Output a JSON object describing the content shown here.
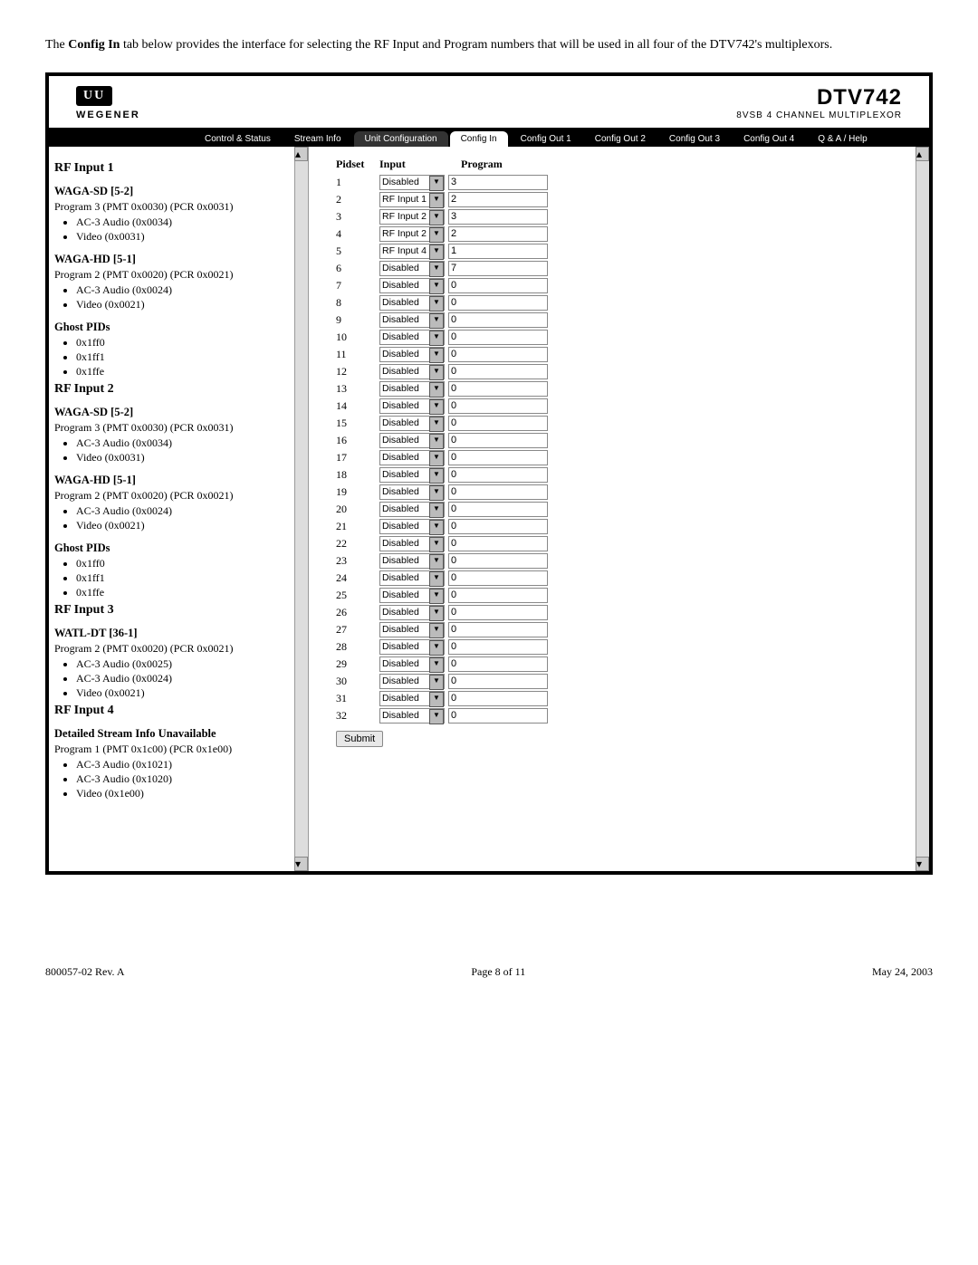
{
  "intro": {
    "prefix": "The ",
    "bold": "Config In",
    "rest": " tab below provides the interface for selecting the RF Input and Program numbers that will be used in all four of the DTV742's multiplexors."
  },
  "header": {
    "logo_symbol": "UU",
    "logo_brand": "WEGENER",
    "title": "DTV742",
    "subtitle": "8VSB 4 CHANNEL MULTIPLEXOR"
  },
  "tabs": [
    {
      "label": "Control & Status",
      "state": "normal"
    },
    {
      "label": "Stream Info",
      "state": "normal"
    },
    {
      "label": "Unit Configuration",
      "state": "active-dark"
    },
    {
      "label": "Config In",
      "state": "active"
    },
    {
      "label": "Config Out 1",
      "state": "normal"
    },
    {
      "label": "Config Out 2",
      "state": "normal"
    },
    {
      "label": "Config Out 3",
      "state": "normal"
    },
    {
      "label": "Config Out 4",
      "state": "normal"
    },
    {
      "label": "Q & A / Help",
      "state": "normal"
    }
  ],
  "left": {
    "inputs": [
      {
        "title": "RF Input 1",
        "stations": [
          {
            "name": "WAGA-SD [5-2]",
            "program": "Program 3 (PMT 0x0030) (PCR 0x0031)",
            "streams": [
              "AC-3 Audio (0x0034)",
              "Video (0x0031)"
            ]
          },
          {
            "name": "WAGA-HD [5-1]",
            "program": "Program 2 (PMT 0x0020) (PCR 0x0021)",
            "streams": [
              "AC-3 Audio (0x0024)",
              "Video (0x0021)"
            ]
          }
        ],
        "ghost_title": "Ghost PIDs",
        "ghost": [
          "0x1ff0",
          "0x1ff1",
          "0x1ffe"
        ]
      },
      {
        "title": "RF Input 2",
        "stations": [
          {
            "name": "WAGA-SD [5-2]",
            "program": "Program 3 (PMT 0x0030) (PCR 0x0031)",
            "streams": [
              "AC-3 Audio (0x0034)",
              "Video (0x0031)"
            ]
          },
          {
            "name": "WAGA-HD [5-1]",
            "program": "Program 2 (PMT 0x0020) (PCR 0x0021)",
            "streams": [
              "AC-3 Audio (0x0024)",
              "Video (0x0021)"
            ]
          }
        ],
        "ghost_title": "Ghost PIDs",
        "ghost": [
          "0x1ff0",
          "0x1ff1",
          "0x1ffe"
        ]
      },
      {
        "title": "RF Input 3",
        "stations": [
          {
            "name": "WATL-DT [36-1]",
            "program": "Program 2 (PMT 0x0020) (PCR 0x0021)",
            "streams": [
              "AC-3 Audio (0x0025)",
              "AC-3 Audio (0x0024)",
              "Video (0x0021)"
            ]
          }
        ]
      },
      {
        "title": "RF Input 4",
        "stations": [
          {
            "name": "Detailed Stream Info Unavailable",
            "program": "Program 1 (PMT 0x1c00) (PCR 0x1e00)",
            "streams": [
              "AC-3 Audio (0x1021)",
              "AC-3 Audio (0x1020)",
              "Video (0x1e00)"
            ]
          }
        ]
      }
    ]
  },
  "right": {
    "th_pidset": "Pidset",
    "th_input": "Input",
    "th_program": "Program",
    "input_options": [
      "Disabled",
      "RF Input 1",
      "RF Input 2",
      "RF Input 3",
      "RF Input 4"
    ],
    "rows": [
      {
        "n": 1,
        "input": "Disabled",
        "program": "3"
      },
      {
        "n": 2,
        "input": "RF Input 1",
        "program": "2"
      },
      {
        "n": 3,
        "input": "RF Input 2",
        "program": "3"
      },
      {
        "n": 4,
        "input": "RF Input 2",
        "program": "2"
      },
      {
        "n": 5,
        "input": "RF Input 4",
        "program": "1"
      },
      {
        "n": 6,
        "input": "Disabled",
        "program": "7"
      },
      {
        "n": 7,
        "input": "Disabled",
        "program": "0"
      },
      {
        "n": 8,
        "input": "Disabled",
        "program": "0"
      },
      {
        "n": 9,
        "input": "Disabled",
        "program": "0"
      },
      {
        "n": 10,
        "input": "Disabled",
        "program": "0"
      },
      {
        "n": 11,
        "input": "Disabled",
        "program": "0"
      },
      {
        "n": 12,
        "input": "Disabled",
        "program": "0"
      },
      {
        "n": 13,
        "input": "Disabled",
        "program": "0"
      },
      {
        "n": 14,
        "input": "Disabled",
        "program": "0"
      },
      {
        "n": 15,
        "input": "Disabled",
        "program": "0"
      },
      {
        "n": 16,
        "input": "Disabled",
        "program": "0"
      },
      {
        "n": 17,
        "input": "Disabled",
        "program": "0"
      },
      {
        "n": 18,
        "input": "Disabled",
        "program": "0"
      },
      {
        "n": 19,
        "input": "Disabled",
        "program": "0"
      },
      {
        "n": 20,
        "input": "Disabled",
        "program": "0"
      },
      {
        "n": 21,
        "input": "Disabled",
        "program": "0"
      },
      {
        "n": 22,
        "input": "Disabled",
        "program": "0"
      },
      {
        "n": 23,
        "input": "Disabled",
        "program": "0"
      },
      {
        "n": 24,
        "input": "Disabled",
        "program": "0"
      },
      {
        "n": 25,
        "input": "Disabled",
        "program": "0"
      },
      {
        "n": 26,
        "input": "Disabled",
        "program": "0"
      },
      {
        "n": 27,
        "input": "Disabled",
        "program": "0"
      },
      {
        "n": 28,
        "input": "Disabled",
        "program": "0"
      },
      {
        "n": 29,
        "input": "Disabled",
        "program": "0"
      },
      {
        "n": 30,
        "input": "Disabled",
        "program": "0"
      },
      {
        "n": 31,
        "input": "Disabled",
        "program": "0"
      },
      {
        "n": 32,
        "input": "Disabled",
        "program": "0"
      }
    ],
    "submit_label": "Submit"
  },
  "footer": {
    "left": "800057-02 Rev. A",
    "center": "Page 8 of 11",
    "right": "May 24, 2003"
  }
}
